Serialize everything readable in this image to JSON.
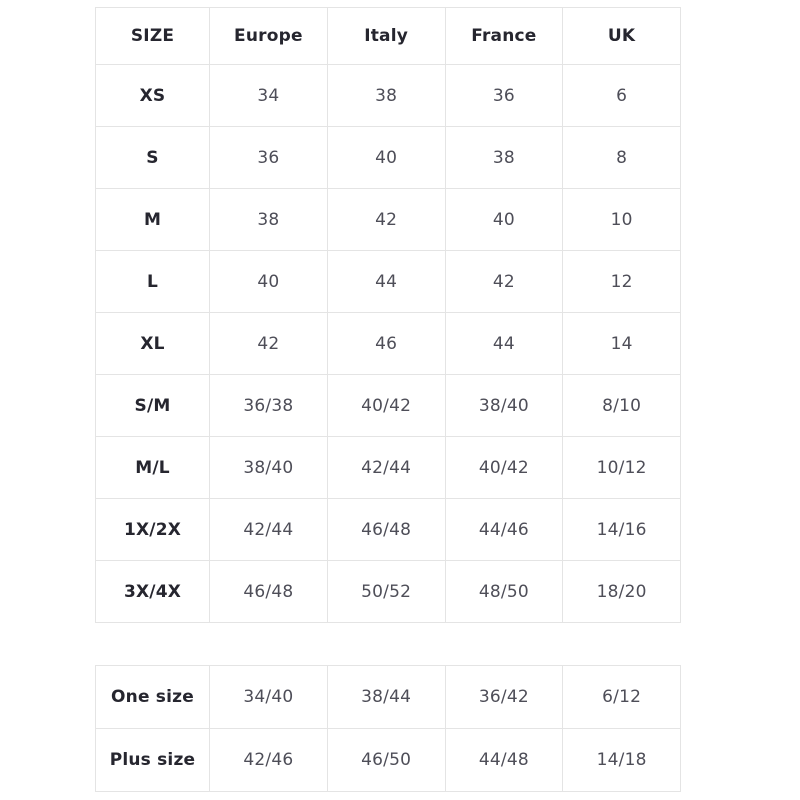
{
  "chart_data": [
    {
      "type": "table",
      "name": "size-conversion-main",
      "columns": [
        "SIZE",
        "Europe",
        "Italy",
        "France",
        "UK"
      ],
      "rows": [
        [
          "XS",
          "34",
          "38",
          "36",
          "6"
        ],
        [
          "S",
          "36",
          "40",
          "38",
          "8"
        ],
        [
          "M",
          "38",
          "42",
          "40",
          "10"
        ],
        [
          "L",
          "40",
          "44",
          "42",
          "12"
        ],
        [
          "XL",
          "42",
          "46",
          "44",
          "14"
        ],
        [
          "S/M",
          "36/38",
          "40/42",
          "38/40",
          "8/10"
        ],
        [
          "M/L",
          "38/40",
          "42/44",
          "40/42",
          "10/12"
        ],
        [
          "1X/2X",
          "42/44",
          "46/48",
          "44/46",
          "14/16"
        ],
        [
          "3X/4X",
          "46/48",
          "50/52",
          "48/50",
          "18/20"
        ]
      ]
    },
    {
      "type": "table",
      "name": "size-conversion-special",
      "columns": [],
      "rows": [
        [
          "One size",
          "34/40",
          "38/44",
          "36/42",
          "6/12"
        ],
        [
          "Plus size",
          "42/46",
          "46/50",
          "44/48",
          "14/18"
        ]
      ]
    }
  ],
  "colors": {
    "border": "#e4e4e4",
    "header_text": "#26262f",
    "cell_text": "#4e4e58",
    "background": "#ffffff"
  }
}
